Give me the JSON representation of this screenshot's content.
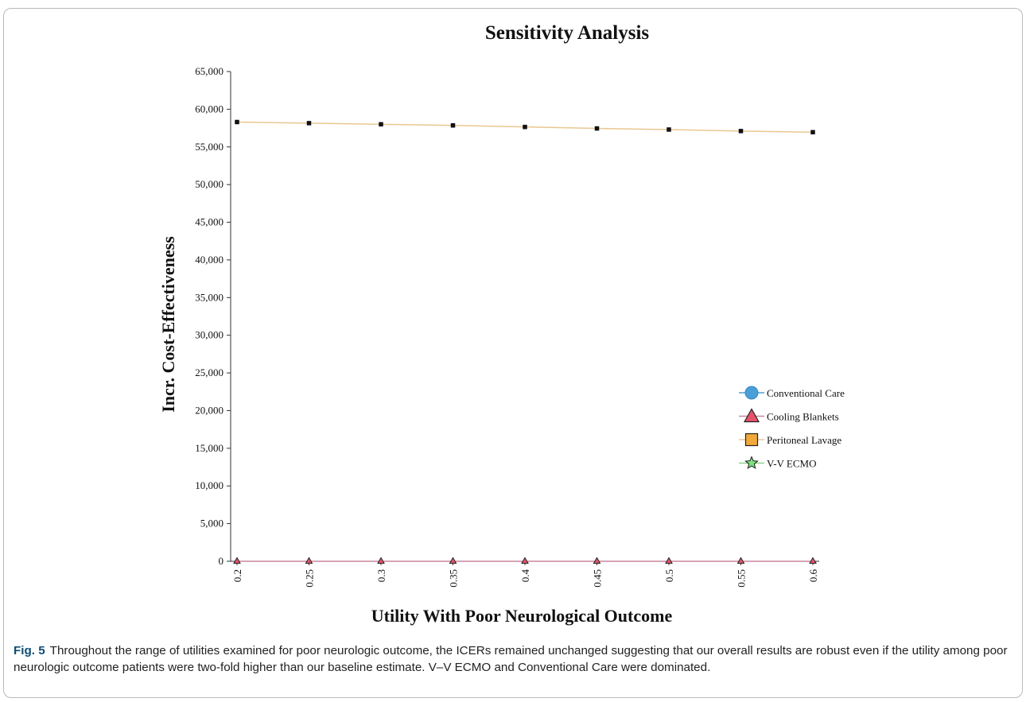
{
  "chart_data": {
    "type": "line",
    "title": "Sensitivity Analysis",
    "xlabel": "Utility With Poor Neurological Outcome",
    "ylabel": "Incr. Cost-Effectiveness",
    "categories": [
      "0.2",
      "0.25",
      "0.3",
      "0.35",
      "0.4",
      "0.45",
      "0.5",
      "0.55",
      "0.6"
    ],
    "y_ticks": [
      "0",
      "5,000",
      "10,000",
      "15,000",
      "20,000",
      "25,000",
      "30,000",
      "35,000",
      "40,000",
      "45,000",
      "50,000",
      "55,000",
      "60,000",
      "65,000"
    ],
    "ylim": [
      0,
      65000
    ],
    "grid": false,
    "legend_position": "right",
    "series": [
      {
        "name": "Conventional Care",
        "marker": "circle",
        "color": "#4a9fd8",
        "line_color": "#4a9fd8",
        "values": [
          0,
          0,
          0,
          0,
          0,
          0,
          0,
          0,
          0
        ],
        "shown_on_plot": false
      },
      {
        "name": "Cooling Blankets",
        "marker": "triangle",
        "color": "#e8536a",
        "line_color": "#c9879a",
        "values": [
          0,
          0,
          0,
          0,
          0,
          0,
          0,
          0,
          0
        ],
        "shown_on_plot": true
      },
      {
        "name": "Peritoneal Lavage",
        "marker": "square",
        "color": "#f2a93b",
        "line_color": "#e8c891",
        "values": [
          58300,
          58150,
          58000,
          57850,
          57650,
          57450,
          57300,
          57100,
          56950
        ],
        "shown_on_plot": true
      },
      {
        "name": "V-V ECMO",
        "marker": "star",
        "color": "#7fe07f",
        "line_color": "#8fd48f",
        "values": [
          0,
          0,
          0,
          0,
          0,
          0,
          0,
          0,
          0
        ],
        "shown_on_plot": false
      }
    ]
  },
  "caption": {
    "label": "Fig. 5",
    "text": "Throughout the range of utilities examined for poor neurologic outcome, the ICERs remained unchanged suggesting that our overall results are robust even if the utility among poor neurologic outcome patients were two-fold higher than our baseline estimate. V–V ECMO and Conventional Care were dominated."
  }
}
